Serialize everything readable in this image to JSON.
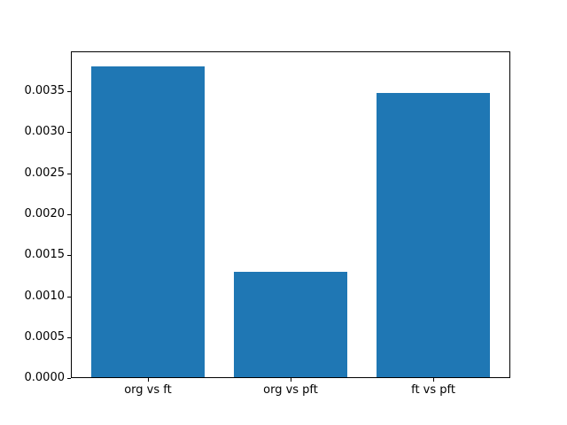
{
  "chart_data": {
    "type": "bar",
    "title": "",
    "xlabel": "",
    "ylabel": "",
    "categories": [
      "org vs ft",
      "org vs pft",
      "ft vs pft"
    ],
    "values": [
      0.0038,
      0.0013,
      0.00348
    ],
    "yticks": [
      0.0,
      0.0005,
      0.001,
      0.0015,
      0.002,
      0.0025,
      0.003,
      0.0035
    ],
    "ytick_labels": [
      "0.0000",
      "0.0005",
      "0.0010",
      "0.0015",
      "0.0020",
      "0.0025",
      "0.0030",
      "0.0035"
    ],
    "ylim": [
      0,
      0.00399
    ],
    "xlim": [
      -0.54,
      2.54
    ],
    "bar_width": 0.8,
    "bar_color": "#1f77b4",
    "spine_color": "#000000",
    "text_color": "#000000",
    "background_color": "#ffffff",
    "grid": false,
    "legend": null
  }
}
